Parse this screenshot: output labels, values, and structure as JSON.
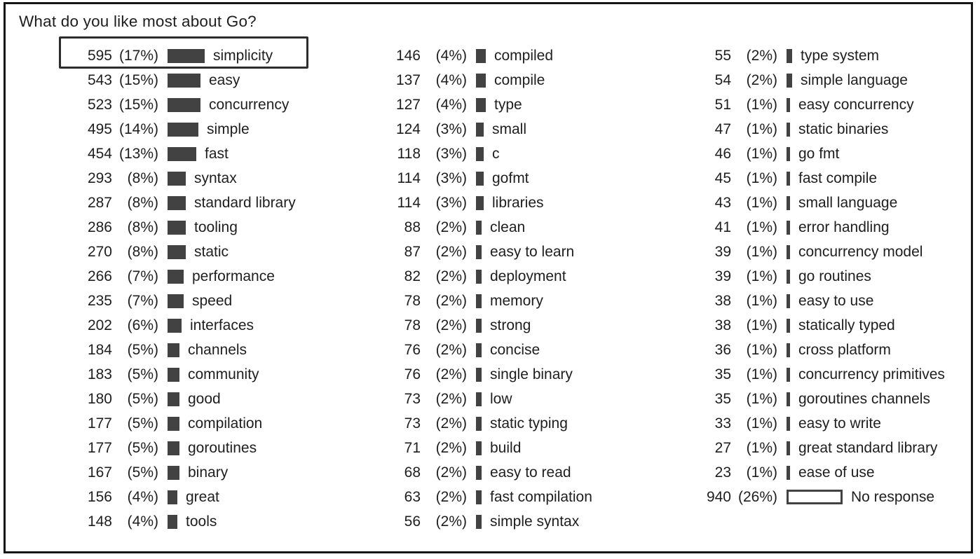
{
  "colors": {
    "bar_fill": "#424242",
    "text": "#1e1e1e",
    "frame_border": "#161616",
    "highlight_border": "#2d2d2d"
  },
  "chart_data": {
    "type": "bar",
    "orientation": "horizontal",
    "title": "What do you like most about Go?",
    "value_format": "count (percent%)",
    "legend": "none",
    "grid": false,
    "highlighted_item": "simplicity",
    "columns": [
      {
        "items": [
          {
            "count": 595,
            "pct": 17,
            "label": "simplicity",
            "highlighted": true
          },
          {
            "count": 543,
            "pct": 15,
            "label": "easy"
          },
          {
            "count": 523,
            "pct": 15,
            "label": "concurrency"
          },
          {
            "count": 495,
            "pct": 14,
            "label": "simple"
          },
          {
            "count": 454,
            "pct": 13,
            "label": "fast"
          },
          {
            "count": 293,
            "pct": 8,
            "label": "syntax"
          },
          {
            "count": 287,
            "pct": 8,
            "label": "standard library"
          },
          {
            "count": 286,
            "pct": 8,
            "label": "tooling"
          },
          {
            "count": 270,
            "pct": 8,
            "label": "static"
          },
          {
            "count": 266,
            "pct": 7,
            "label": "performance"
          },
          {
            "count": 235,
            "pct": 7,
            "label": "speed"
          },
          {
            "count": 202,
            "pct": 6,
            "label": "interfaces"
          },
          {
            "count": 184,
            "pct": 5,
            "label": "channels"
          },
          {
            "count": 183,
            "pct": 5,
            "label": "community"
          },
          {
            "count": 180,
            "pct": 5,
            "label": "good"
          },
          {
            "count": 177,
            "pct": 5,
            "label": "compilation"
          },
          {
            "count": 177,
            "pct": 5,
            "label": "goroutines"
          },
          {
            "count": 167,
            "pct": 5,
            "label": "binary"
          },
          {
            "count": 156,
            "pct": 4,
            "label": "great"
          },
          {
            "count": 148,
            "pct": 4,
            "label": "tools"
          }
        ]
      },
      {
        "items": [
          {
            "count": 146,
            "pct": 4,
            "label": "compiled"
          },
          {
            "count": 137,
            "pct": 4,
            "label": "compile"
          },
          {
            "count": 127,
            "pct": 4,
            "label": "type"
          },
          {
            "count": 124,
            "pct": 3,
            "label": "small"
          },
          {
            "count": 118,
            "pct": 3,
            "label": "c"
          },
          {
            "count": 114,
            "pct": 3,
            "label": "gofmt"
          },
          {
            "count": 114,
            "pct": 3,
            "label": "libraries"
          },
          {
            "count": 88,
            "pct": 2,
            "label": "clean"
          },
          {
            "count": 87,
            "pct": 2,
            "label": "easy to learn"
          },
          {
            "count": 82,
            "pct": 2,
            "label": "deployment"
          },
          {
            "count": 78,
            "pct": 2,
            "label": "memory"
          },
          {
            "count": 78,
            "pct": 2,
            "label": "strong"
          },
          {
            "count": 76,
            "pct": 2,
            "label": "concise"
          },
          {
            "count": 76,
            "pct": 2,
            "label": "single binary"
          },
          {
            "count": 73,
            "pct": 2,
            "label": "low"
          },
          {
            "count": 73,
            "pct": 2,
            "label": "static typing"
          },
          {
            "count": 71,
            "pct": 2,
            "label": "build"
          },
          {
            "count": 68,
            "pct": 2,
            "label": "easy to read"
          },
          {
            "count": 63,
            "pct": 2,
            "label": "fast compilation"
          },
          {
            "count": 56,
            "pct": 2,
            "label": "simple syntax"
          }
        ]
      },
      {
        "items": [
          {
            "count": 55,
            "pct": 2,
            "label": "type system"
          },
          {
            "count": 54,
            "pct": 2,
            "label": "simple language"
          },
          {
            "count": 51,
            "pct": 1,
            "label": "easy concurrency"
          },
          {
            "count": 47,
            "pct": 1,
            "label": "static binaries"
          },
          {
            "count": 46,
            "pct": 1,
            "label": "go fmt"
          },
          {
            "count": 45,
            "pct": 1,
            "label": "fast compile"
          },
          {
            "count": 43,
            "pct": 1,
            "label": "small language"
          },
          {
            "count": 41,
            "pct": 1,
            "label": "error handling"
          },
          {
            "count": 39,
            "pct": 1,
            "label": "concurrency model"
          },
          {
            "count": 39,
            "pct": 1,
            "label": "go routines"
          },
          {
            "count": 38,
            "pct": 1,
            "label": "easy to use"
          },
          {
            "count": 38,
            "pct": 1,
            "label": "statically typed"
          },
          {
            "count": 36,
            "pct": 1,
            "label": "cross platform"
          },
          {
            "count": 35,
            "pct": 1,
            "label": "concurrency primitives"
          },
          {
            "count": 35,
            "pct": 1,
            "label": "goroutines channels"
          },
          {
            "count": 33,
            "pct": 1,
            "label": "easy to write"
          },
          {
            "count": 27,
            "pct": 1,
            "label": "great standard library"
          },
          {
            "count": 23,
            "pct": 1,
            "label": "ease of use"
          },
          {
            "count": 940,
            "pct": 26,
            "label": "No response",
            "outlined": true
          }
        ]
      }
    ]
  }
}
